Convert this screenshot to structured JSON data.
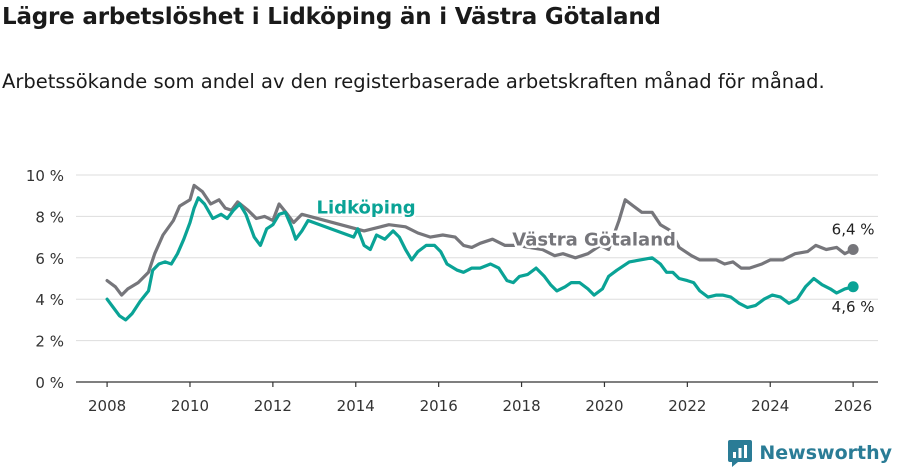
{
  "header": {
    "title": "Lägre arbetslöshet i Lidköping än i Västra Götaland",
    "subtitle": "Arbetssökande som andel av den registerbaserade arbetskraften månad för månad."
  },
  "brand": {
    "name": "Newsworthy"
  },
  "colors": {
    "lidkoping": "#0aa396",
    "vastra": "#76767b",
    "grid": "#dddddd",
    "axis": "#333333"
  },
  "chart_data": {
    "type": "line",
    "title": "Lägre arbetslöshet i Lidköping än i Västra Götaland",
    "xlabel": "",
    "ylabel": "",
    "xlim": [
      2007.25,
      2026.6
    ],
    "ylim": [
      0,
      10
    ],
    "x_ticks": [
      2008,
      2010,
      2012,
      2014,
      2016,
      2018,
      2020,
      2022,
      2024,
      2026
    ],
    "x_tick_labels": [
      "2008",
      "2010",
      "2012",
      "2014",
      "2016",
      "2018",
      "2020",
      "2022",
      "2024",
      "2026"
    ],
    "y_ticks": [
      0,
      2,
      4,
      6,
      8,
      10
    ],
    "y_tick_labels": [
      "0 %",
      "2 %",
      "4 %",
      "6 %",
      "8 %",
      "10 %"
    ],
    "grid": true,
    "series": [
      {
        "name": "Västra Götaland",
        "end_label": "6,4 %",
        "points": [
          [
            2008.0,
            4.9
          ],
          [
            2008.2,
            4.6
          ],
          [
            2008.35,
            4.2
          ],
          [
            2008.5,
            4.5
          ],
          [
            2008.75,
            4.8
          ],
          [
            2009.0,
            5.3
          ],
          [
            2009.15,
            6.2
          ],
          [
            2009.35,
            7.1
          ],
          [
            2009.6,
            7.8
          ],
          [
            2009.75,
            8.5
          ],
          [
            2010.0,
            8.8
          ],
          [
            2010.1,
            9.5
          ],
          [
            2010.3,
            9.2
          ],
          [
            2010.5,
            8.6
          ],
          [
            2010.7,
            8.8
          ],
          [
            2010.85,
            8.4
          ],
          [
            2011.0,
            8.3
          ],
          [
            2011.15,
            8.7
          ],
          [
            2011.4,
            8.3
          ],
          [
            2011.6,
            7.9
          ],
          [
            2011.8,
            8.0
          ],
          [
            2012.0,
            7.8
          ],
          [
            2012.15,
            8.6
          ],
          [
            2012.35,
            8.1
          ],
          [
            2012.5,
            7.7
          ],
          [
            2012.7,
            8.1
          ],
          [
            2014.2,
            7.3
          ],
          [
            2014.6,
            7.5
          ],
          [
            2014.8,
            7.6
          ],
          [
            2015.2,
            7.5
          ],
          [
            2015.5,
            7.2
          ],
          [
            2015.8,
            7.0
          ],
          [
            2016.1,
            7.1
          ],
          [
            2016.4,
            7.0
          ],
          [
            2016.6,
            6.6
          ],
          [
            2016.8,
            6.5
          ],
          [
            2017.0,
            6.7
          ],
          [
            2017.3,
            6.9
          ],
          [
            2017.6,
            6.6
          ],
          [
            2017.9,
            6.6
          ],
          [
            2018.5,
            6.4
          ],
          [
            2018.8,
            6.1
          ],
          [
            2019.0,
            6.2
          ],
          [
            2019.3,
            6.0
          ],
          [
            2019.6,
            6.2
          ],
          [
            2019.9,
            6.6
          ],
          [
            2020.1,
            6.4
          ],
          [
            2020.35,
            7.8
          ],
          [
            2020.5,
            8.8
          ],
          [
            2020.7,
            8.5
          ],
          [
            2020.9,
            8.2
          ],
          [
            2021.15,
            8.2
          ],
          [
            2021.35,
            7.6
          ],
          [
            2021.6,
            7.3
          ],
          [
            2021.8,
            6.5
          ],
          [
            2022.1,
            6.1
          ],
          [
            2022.3,
            5.9
          ],
          [
            2022.5,
            5.9
          ],
          [
            2022.7,
            5.9
          ],
          [
            2022.9,
            5.7
          ],
          [
            2023.1,
            5.8
          ],
          [
            2023.3,
            5.5
          ],
          [
            2023.5,
            5.5
          ],
          [
            2023.8,
            5.7
          ],
          [
            2024.0,
            5.9
          ],
          [
            2024.3,
            5.9
          ],
          [
            2024.6,
            6.2
          ],
          [
            2024.9,
            6.3
          ],
          [
            2025.1,
            6.6
          ],
          [
            2025.35,
            6.4
          ],
          [
            2025.6,
            6.5
          ],
          [
            2025.8,
            6.2
          ],
          [
            2026.0,
            6.4
          ]
        ]
      },
      {
        "name": "Lidköping",
        "end_label": "4,6 %",
        "points": [
          [
            2008.0,
            4.0
          ],
          [
            2008.15,
            3.6
          ],
          [
            2008.3,
            3.2
          ],
          [
            2008.45,
            3.0
          ],
          [
            2008.6,
            3.3
          ],
          [
            2008.8,
            3.9
          ],
          [
            2009.0,
            4.4
          ],
          [
            2009.1,
            5.4
          ],
          [
            2009.25,
            5.7
          ],
          [
            2009.4,
            5.8
          ],
          [
            2009.55,
            5.7
          ],
          [
            2009.7,
            6.2
          ],
          [
            2009.85,
            6.9
          ],
          [
            2010.0,
            7.7
          ],
          [
            2010.1,
            8.4
          ],
          [
            2010.2,
            8.9
          ],
          [
            2010.35,
            8.6
          ],
          [
            2010.55,
            7.9
          ],
          [
            2010.75,
            8.1
          ],
          [
            2010.9,
            7.9
          ],
          [
            2011.05,
            8.3
          ],
          [
            2011.2,
            8.6
          ],
          [
            2011.35,
            8.1
          ],
          [
            2011.55,
            7.0
          ],
          [
            2011.7,
            6.6
          ],
          [
            2011.85,
            7.4
          ],
          [
            2012.0,
            7.6
          ],
          [
            2012.15,
            8.1
          ],
          [
            2012.3,
            8.2
          ],
          [
            2012.45,
            7.5
          ],
          [
            2012.55,
            6.9
          ],
          [
            2012.7,
            7.3
          ],
          [
            2012.85,
            7.8
          ],
          [
            2013.95,
            7.0
          ],
          [
            2014.05,
            7.4
          ],
          [
            2014.2,
            6.6
          ],
          [
            2014.35,
            6.4
          ],
          [
            2014.5,
            7.1
          ],
          [
            2014.7,
            6.9
          ],
          [
            2014.9,
            7.3
          ],
          [
            2015.05,
            7.0
          ],
          [
            2015.2,
            6.4
          ],
          [
            2015.35,
            5.9
          ],
          [
            2015.5,
            6.3
          ],
          [
            2015.7,
            6.6
          ],
          [
            2015.9,
            6.6
          ],
          [
            2016.05,
            6.3
          ],
          [
            2016.2,
            5.7
          ],
          [
            2016.45,
            5.4
          ],
          [
            2016.6,
            5.3
          ],
          [
            2016.8,
            5.5
          ],
          [
            2017.0,
            5.5
          ],
          [
            2017.25,
            5.7
          ],
          [
            2017.45,
            5.5
          ],
          [
            2017.65,
            4.9
          ],
          [
            2017.8,
            4.8
          ],
          [
            2017.95,
            5.1
          ],
          [
            2018.15,
            5.2
          ],
          [
            2018.35,
            5.5
          ],
          [
            2018.55,
            5.1
          ],
          [
            2018.7,
            4.7
          ],
          [
            2018.85,
            4.4
          ],
          [
            2019.05,
            4.6
          ],
          [
            2019.2,
            4.8
          ],
          [
            2019.4,
            4.8
          ],
          [
            2019.6,
            4.5
          ],
          [
            2019.75,
            4.2
          ],
          [
            2019.95,
            4.5
          ],
          [
            2020.1,
            5.1
          ],
          [
            2020.3,
            5.4
          ],
          [
            2020.45,
            5.6
          ],
          [
            2020.6,
            5.8
          ],
          [
            2021.15,
            6.0
          ],
          [
            2021.35,
            5.7
          ],
          [
            2021.5,
            5.3
          ],
          [
            2021.65,
            5.3
          ],
          [
            2021.8,
            5.0
          ],
          [
            2022.0,
            4.9
          ],
          [
            2022.15,
            4.8
          ],
          [
            2022.3,
            4.4
          ],
          [
            2022.5,
            4.1
          ],
          [
            2022.7,
            4.2
          ],
          [
            2022.85,
            4.2
          ],
          [
            2023.05,
            4.1
          ],
          [
            2023.25,
            3.8
          ],
          [
            2023.45,
            3.6
          ],
          [
            2023.65,
            3.7
          ],
          [
            2023.85,
            4.0
          ],
          [
            2024.05,
            4.2
          ],
          [
            2024.25,
            4.1
          ],
          [
            2024.45,
            3.8
          ],
          [
            2024.65,
            4.0
          ],
          [
            2024.85,
            4.6
          ],
          [
            2025.05,
            5.0
          ],
          [
            2025.25,
            4.7
          ],
          [
            2025.45,
            4.5
          ],
          [
            2025.6,
            4.3
          ],
          [
            2025.8,
            4.5
          ],
          [
            2026.0,
            4.6
          ]
        ]
      }
    ],
    "annotations": [
      {
        "series": "Lidköping",
        "text": "Lidköping",
        "x": 2014.25,
        "y": 8.15
      },
      {
        "series": "Västra Götaland",
        "text": "Västra Götaland",
        "x": 2019.75,
        "y": 6.6
      }
    ]
  }
}
